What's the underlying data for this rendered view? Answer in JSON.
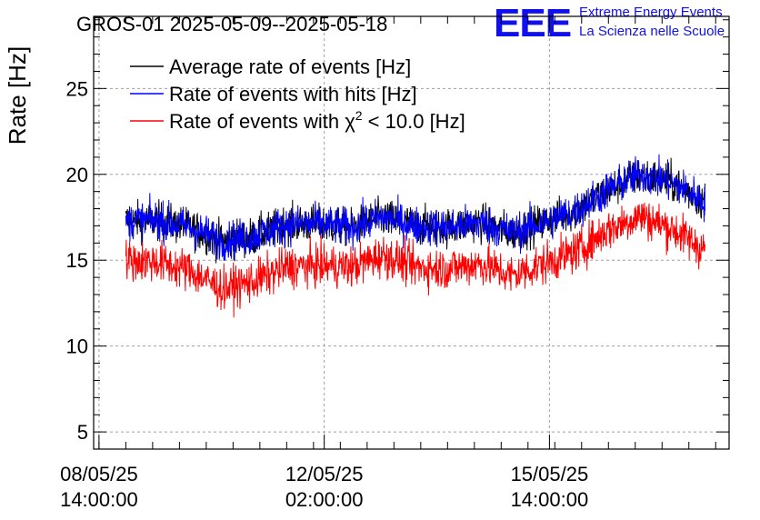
{
  "header": {
    "title": "GROS-01 2025-05-09--2025-05-18",
    "brand_logo": "EEE",
    "brand_line1": "Extreme Energy Events",
    "brand_line2": "La Scienza nelle Scuole"
  },
  "chart_data": {
    "type": "line",
    "title": "GROS-01 2025-05-09--2025-05-18",
    "xlabel": "",
    "ylabel": "Rate [Hz]",
    "ylim": [
      4,
      29.2
    ],
    "yticks": [
      5,
      10,
      15,
      20,
      25
    ],
    "xlim": [
      "2025-05-08 12:00:00",
      "2025-05-18 09:00:00"
    ],
    "xticks": [
      {
        "date": "08/05/25",
        "time": "14:00:00",
        "x": "2025-05-08 14:00:00"
      },
      {
        "date": "12/05/25",
        "time": "02:00:00",
        "x": "2025-05-12 02:00:00"
      },
      {
        "date": "15/05/25",
        "time": "14:00:00",
        "x": "2025-05-15 14:00:00"
      }
    ],
    "grid": true,
    "legend_position": "top-left",
    "series": [
      {
        "name": "Average rate of events [Hz]",
        "color": "#000000",
        "x": [
          "2025-05-09 00:00",
          "2025-05-09 12:00",
          "2025-05-10 00:00",
          "2025-05-10 12:00",
          "2025-05-11 00:00",
          "2025-05-11 12:00",
          "2025-05-12 00:00",
          "2025-05-12 12:00",
          "2025-05-13 00:00",
          "2025-05-13 12:00",
          "2025-05-14 00:00",
          "2025-05-14 12:00",
          "2025-05-15 00:00",
          "2025-05-15 12:00",
          "2025-05-16 00:00",
          "2025-05-16 12:00",
          "2025-05-17 00:00",
          "2025-05-17 12:00",
          "2025-05-18 00:00"
        ],
        "y": [
          17.3,
          17.3,
          16.9,
          16.1,
          16.4,
          17.1,
          17.1,
          16.9,
          17.5,
          17.0,
          16.9,
          17.2,
          16.6,
          17.2,
          17.9,
          19.1,
          20.0,
          19.5,
          18.4
        ]
      },
      {
        "name": "Rate of events with hits [Hz]",
        "color": "#0000ff",
        "x": [
          "2025-05-09 00:00",
          "2025-05-09 12:00",
          "2025-05-10 00:00",
          "2025-05-10 12:00",
          "2025-05-11 00:00",
          "2025-05-11 12:00",
          "2025-05-12 00:00",
          "2025-05-12 12:00",
          "2025-05-13 00:00",
          "2025-05-13 12:00",
          "2025-05-14 00:00",
          "2025-05-14 12:00",
          "2025-05-15 00:00",
          "2025-05-15 12:00",
          "2025-05-16 00:00",
          "2025-05-16 12:00",
          "2025-05-17 00:00",
          "2025-05-17 12:00",
          "2025-05-18 00:00"
        ],
        "y": [
          17.3,
          17.3,
          16.9,
          16.1,
          16.4,
          17.1,
          17.1,
          16.9,
          17.5,
          17.0,
          16.9,
          17.2,
          16.6,
          17.2,
          17.9,
          19.1,
          20.0,
          19.5,
          18.4
        ]
      },
      {
        "name": "Rate of events with χ2 < 10.0 [Hz]",
        "color": "#ff0000",
        "x": [
          "2025-05-09 00:00",
          "2025-05-09 12:00",
          "2025-05-10 00:00",
          "2025-05-10 12:00",
          "2025-05-11 00:00",
          "2025-05-11 12:00",
          "2025-05-12 00:00",
          "2025-05-12 12:00",
          "2025-05-13 00:00",
          "2025-05-13 12:00",
          "2025-05-14 00:00",
          "2025-05-14 12:00",
          "2025-05-15 00:00",
          "2025-05-15 12:00",
          "2025-05-16 00:00",
          "2025-05-16 12:00",
          "2025-05-17 00:00",
          "2025-05-17 12:00",
          "2025-05-18 00:00"
        ],
        "y": [
          15.0,
          14.9,
          14.4,
          13.3,
          13.8,
          14.6,
          14.7,
          14.6,
          15.3,
          14.6,
          14.5,
          14.8,
          14.1,
          14.8,
          15.5,
          16.8,
          17.6,
          16.8,
          15.6
        ]
      }
    ]
  }
}
